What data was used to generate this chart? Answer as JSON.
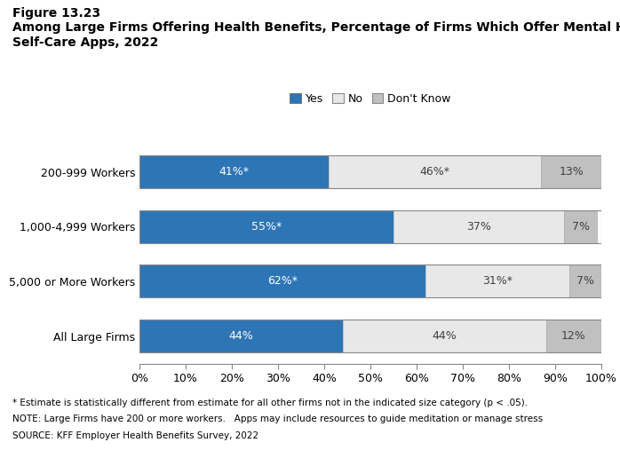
{
  "title_line1": "Figure 13.23",
  "title_line2": "Among Large Firms Offering Health Benefits, Percentage of Firms Which Offer Mental Health",
  "title_line3": "Self-Care Apps, 2022",
  "categories": [
    "200-999 Workers",
    "1,000-4,999 Workers",
    "5,000 or More Workers",
    "All Large Firms"
  ],
  "yes_values": [
    41,
    55,
    62,
    44
  ],
  "no_values": [
    46,
    37,
    31,
    44
  ],
  "dk_values": [
    13,
    7,
    7,
    12
  ],
  "yes_labels": [
    "41%*",
    "55%*",
    "62%*",
    "44%"
  ],
  "no_labels": [
    "46%*",
    "37%",
    "31%*",
    "44%"
  ],
  "dk_labels": [
    "13%",
    "7%",
    "7%",
    "12%"
  ],
  "yes_color": "#2E75B6",
  "no_color": "#E8E8E8",
  "dk_color": "#C0C0C0",
  "legend_labels": [
    "Yes",
    "No",
    "Don't Know"
  ],
  "footnote1": "* Estimate is statistically different from estimate for all other firms not in the indicated size category (p < .05).",
  "footnote2": "NOTE: Large Firms have 200 or more workers.   Apps may include resources to guide meditation or manage stress",
  "footnote3": "SOURCE: KFF Employer Health Benefits Survey, 2022",
  "xlim": [
    0,
    100
  ],
  "xtick_values": [
    0,
    10,
    20,
    30,
    40,
    50,
    60,
    70,
    80,
    90,
    100
  ],
  "xtick_labels": [
    "0%",
    "10%",
    "20%",
    "30%",
    "40%",
    "50%",
    "60%",
    "70%",
    "80%",
    "90%",
    "100%"
  ]
}
